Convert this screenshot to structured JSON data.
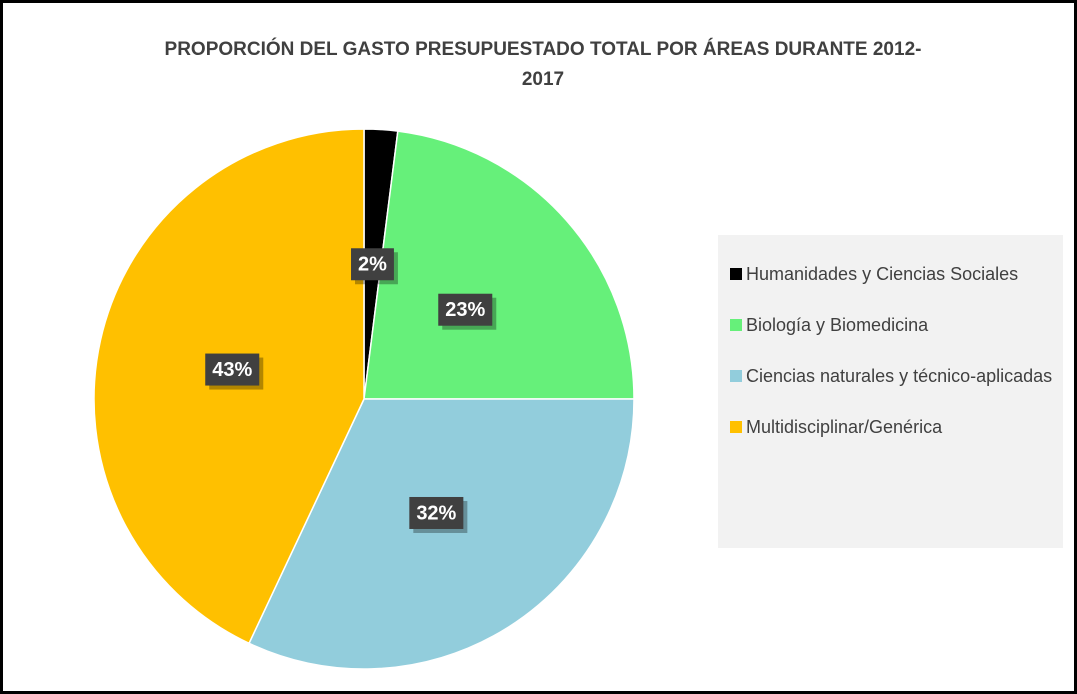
{
  "chart_data": {
    "type": "pie",
    "title": "PROPORCIÓN DEL GASTO PRESUPUESTADO TOTAL POR ÁREAS DURANTE 2012-2017",
    "categories": [
      "Humanidades y Ciencias Sociales",
      "Biología y Biomedicina",
      "Ciencias naturales y técnico-aplicadas",
      "Multidisciplinar/Genérica"
    ],
    "values": [
      2,
      23,
      32,
      43
    ],
    "value_labels": [
      "2%",
      "23%",
      "32%",
      "43%"
    ],
    "colors": [
      "#000000",
      "#66f07a",
      "#92cddc",
      "#ffc000"
    ],
    "legend": "right"
  }
}
